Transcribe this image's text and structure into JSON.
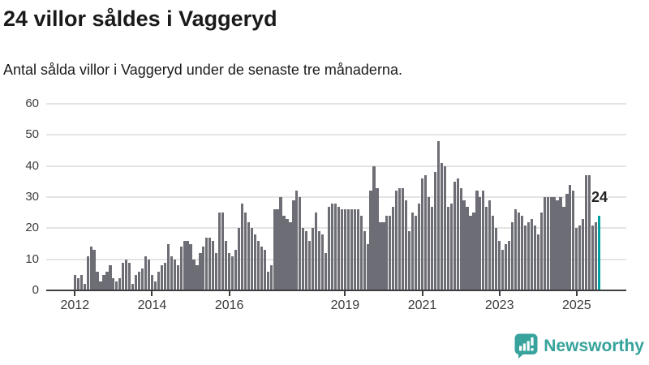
{
  "header": {
    "title": "24 villor såldes i Vaggeryd",
    "subtitle": "Antal sålda villor i Vaggeryd under de senaste tre månaderna."
  },
  "chart_data": {
    "type": "bar",
    "title": "24 villor såldes i Vaggeryd",
    "subtitle": "Antal sålda villor i Vaggeryd under de senaste tre månaderna.",
    "x_start": "2012-01",
    "x_frequency": "monthly",
    "values": [
      5,
      4,
      5,
      2,
      11,
      14,
      13,
      6,
      3,
      5,
      6,
      8,
      4,
      3,
      4,
      9,
      10,
      9,
      2,
      5,
      6,
      7,
      11,
      10,
      5,
      3,
      6,
      8,
      9,
      15,
      11,
      10,
      8,
      14,
      16,
      16,
      15,
      10,
      8,
      12,
      14,
      17,
      17,
      16,
      12,
      25,
      25,
      16,
      12,
      11,
      13,
      20,
      28,
      25,
      22,
      20,
      18,
      16,
      14,
      13,
      6,
      8,
      26,
      26,
      30,
      24,
      23,
      22,
      29,
      32,
      30,
      20,
      19,
      16,
      20,
      25,
      19,
      18,
      12,
      27,
      28,
      28,
      27,
      26,
      26,
      26,
      26,
      26,
      26,
      24,
      19,
      15,
      32,
      40,
      33,
      22,
      22,
      24,
      24,
      27,
      32,
      33,
      33,
      29,
      19,
      25,
      24,
      28,
      36,
      37,
      30,
      27,
      38,
      48,
      41,
      40,
      27,
      28,
      35,
      36,
      33,
      29,
      27,
      24,
      25,
      32,
      30,
      32,
      27,
      29,
      24,
      20,
      16,
      13,
      15,
      16,
      22,
      26,
      25,
      24,
      21,
      22,
      23,
      21,
      18,
      25,
      30,
      30,
      30,
      30,
      29,
      30,
      27,
      31,
      34,
      32,
      20,
      21,
      23,
      37,
      37,
      21,
      22,
      24
    ],
    "highlight": {
      "index": 163,
      "value": 24,
      "label": "24",
      "color": "#00a0a5"
    },
    "bar_color": "#6d6d75",
    "grid": true,
    "grid_color": "#e4e4e4",
    "ylim": [
      0,
      60
    ],
    "y_ticks": [
      0,
      10,
      20,
      30,
      40,
      50,
      60
    ],
    "x_ticks": [
      {
        "label": "2012",
        "month_index": 0
      },
      {
        "label": "2014",
        "month_index": 24
      },
      {
        "label": "2016",
        "month_index": 48
      },
      {
        "label": "2019",
        "month_index": 84
      },
      {
        "label": "2021",
        "month_index": 108
      },
      {
        "label": "2023",
        "month_index": 132
      },
      {
        "label": "2025",
        "month_index": 156
      }
    ],
    "xlabel": "",
    "ylabel": "",
    "legend": "none"
  },
  "annotation": {
    "label": "24"
  },
  "footer": {
    "brand": "Newsworthy",
    "brand_color": "#37a39c",
    "icon": "newsworthy-chart-bubble-icon"
  }
}
